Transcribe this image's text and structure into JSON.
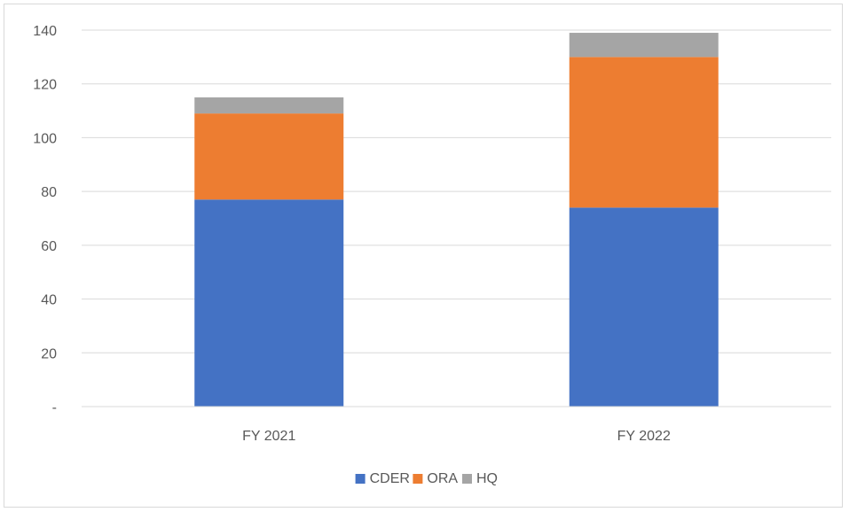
{
  "chart_data": {
    "type": "bar",
    "stacked": true,
    "title": "",
    "xlabel": "",
    "ylabel": "",
    "categories": [
      "FY 2021",
      "FY 2022"
    ],
    "series": [
      {
        "name": "CDER",
        "values": [
          77,
          74
        ],
        "color": "#4472c4"
      },
      {
        "name": "ORA",
        "values": [
          32,
          56
        ],
        "color": "#ed7d31"
      },
      {
        "name": "HQ",
        "values": [
          6,
          9
        ],
        "color": "#a5a5a5"
      }
    ],
    "ylim": [
      0,
      140
    ],
    "yticks": [
      {
        "value": 0,
        "label": "-"
      },
      {
        "value": 20,
        "label": "20"
      },
      {
        "value": 40,
        "label": "40"
      },
      {
        "value": 60,
        "label": "60"
      },
      {
        "value": 80,
        "label": "80"
      },
      {
        "value": 100,
        "label": "100"
      },
      {
        "value": 120,
        "label": "120"
      },
      {
        "value": 140,
        "label": "140"
      }
    ],
    "grid": true,
    "legend_position": "bottom"
  }
}
